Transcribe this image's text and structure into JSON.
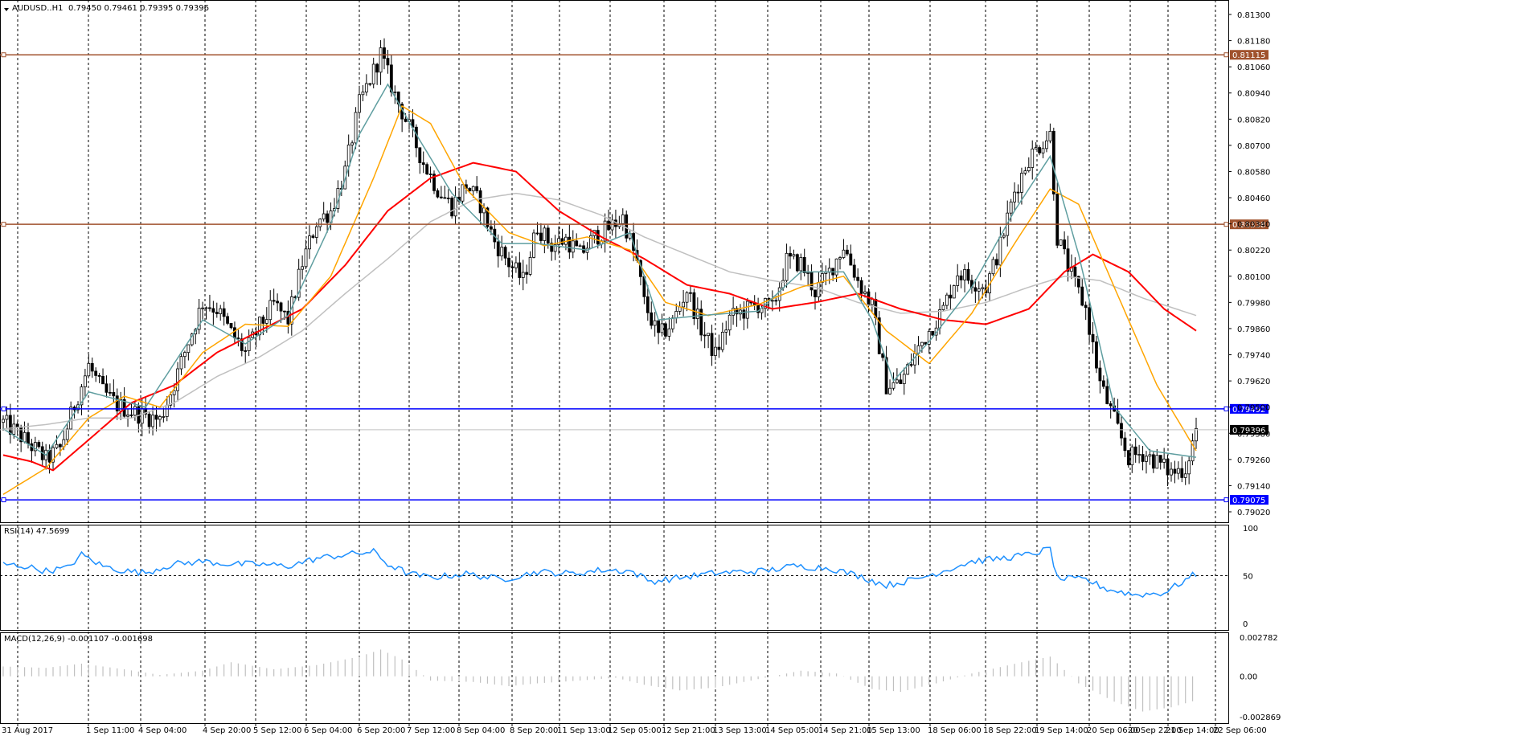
{
  "header": {
    "symbol": "AUDUSD..H1",
    "ohlc": "0.79450 0.79461 0.79395 0.79396"
  },
  "colors": {
    "background": "#ffffff",
    "candle": "#000000",
    "ma_teal": "#5f9ea0",
    "ma_orange": "#ffa500",
    "ma_red": "#ff0000",
    "ma_silver": "#c0c0c0",
    "resistance": "#a0522d",
    "support": "#0000ff",
    "rsi": "#1e90ff",
    "macd": "#c0c0c0"
  },
  "chart_data": [
    {
      "type": "candlestick",
      "symbol": "AUDUSD",
      "timeframe": "H1",
      "ylim": [
        0.7902,
        0.813
      ],
      "yticks": [
        "0.81300",
        "0.81180",
        "0.81060",
        "0.80940",
        "0.80820",
        "0.80700",
        "0.80580",
        "0.80460",
        "0.80340",
        "0.80220",
        "0.80100",
        "0.79980",
        "0.79860",
        "0.79740",
        "0.79620",
        "0.79500",
        "0.79380",
        "0.79260",
        "0.79140",
        "0.79020"
      ],
      "xticks": [
        "31 Aug 2017",
        "1 Sep 11:00",
        "4 Sep 04:00",
        "4 Sep 20:00",
        "5 Sep 12:00",
        "6 Sep 04:00",
        "6 Sep 20:00",
        "7 Sep 12:00",
        "8 Sep 04:00",
        "8 Sep 20:00",
        "11 Sep 13:00",
        "12 Sep 05:00",
        "12 Sep 21:00",
        "13 Sep 13:00",
        "14 Sep 05:00",
        "14 Sep 21:00",
        "15 Sep 13:00",
        "18 Sep 06:00",
        "18 Sep 22:00",
        "19 Sep 14:00",
        "20 Sep 06:00",
        "20 Sep 22:00",
        "21 Sep 14:00",
        "22 Sep 06:00"
      ],
      "close_path": [
        [
          0,
          0.7943
        ],
        [
          4,
          0.7938
        ],
        [
          8,
          0.7932
        ],
        [
          12,
          0.7926
        ],
        [
          16,
          0.7931
        ],
        [
          20,
          0.7951
        ],
        [
          24,
          0.7969
        ],
        [
          28,
          0.7957
        ],
        [
          32,
          0.7951
        ],
        [
          36,
          0.7948
        ],
        [
          40,
          0.7946
        ],
        [
          44,
          0.7944
        ],
        [
          48,
          0.7961
        ],
        [
          52,
          0.798
        ],
        [
          56,
          0.7998
        ],
        [
          60,
          0.7995
        ],
        [
          64,
          0.7984
        ],
        [
          68,
          0.7975
        ],
        [
          72,
          0.7987
        ],
        [
          76,
          0.7997
        ],
        [
          80,
          0.799
        ],
        [
          84,
          0.8016
        ],
        [
          88,
          0.8035
        ],
        [
          92,
          0.804
        ],
        [
          96,
          0.8058
        ],
        [
          100,
          0.8089
        ],
        [
          104,
          0.8104
        ],
        [
          106,
          0.8112
        ],
        [
          110,
          0.8093
        ],
        [
          114,
          0.8078
        ],
        [
          118,
          0.8062
        ],
        [
          122,
          0.805
        ],
        [
          126,
          0.8042
        ],
        [
          130,
          0.8052
        ],
        [
          134,
          0.8043
        ],
        [
          138,
          0.8026
        ],
        [
          142,
          0.8016
        ],
        [
          146,
          0.8008
        ],
        [
          150,
          0.8033
        ],
        [
          154,
          0.8024
        ],
        [
          158,
          0.8027
        ],
        [
          162,
          0.802
        ],
        [
          166,
          0.8028
        ],
        [
          170,
          0.8032
        ],
        [
          174,
          0.8037
        ],
        [
          178,
          0.8016
        ],
        [
          180,
          0.7998
        ],
        [
          184,
          0.7982
        ],
        [
          188,
          0.7989
        ],
        [
          192,
          0.8004
        ],
        [
          196,
          0.7986
        ],
        [
          200,
          0.7974
        ],
        [
          204,
          0.7991
        ],
        [
          208,
          0.7994
        ],
        [
          212,
          0.7997
        ],
        [
          216,
          0.7995
        ],
        [
          220,
          0.8017
        ],
        [
          224,
          0.8016
        ],
        [
          228,
          0.8003
        ],
        [
          232,
          0.8012
        ],
        [
          236,
          0.8024
        ],
        [
          240,
          0.8008
        ],
        [
          244,
          0.7996
        ],
        [
          248,
          0.796
        ],
        [
          252,
          0.7961
        ],
        [
          256,
          0.7974
        ],
        [
          260,
          0.7985
        ],
        [
          264,
          0.7995
        ],
        [
          268,
          0.8012
        ],
        [
          272,
          0.8008
        ],
        [
          276,
          0.8005
        ],
        [
          280,
          0.8024
        ],
        [
          284,
          0.8049
        ],
        [
          288,
          0.8064
        ],
        [
          292,
          0.8072
        ],
        [
          294,
          0.8075
        ],
        [
          296,
          0.8028
        ],
        [
          300,
          0.801
        ],
        [
          304,
          0.7995
        ],
        [
          308,
          0.7961
        ],
        [
          312,
          0.7944
        ],
        [
          316,
          0.7927
        ],
        [
          320,
          0.7929
        ],
        [
          324,
          0.7925
        ],
        [
          328,
          0.792
        ],
        [
          332,
          0.7922
        ],
        [
          335,
          0.794
        ]
      ],
      "n_bars": 336,
      "ma_teal": [
        [
          0,
          0.794
        ],
        [
          12,
          0.7928
        ],
        [
          24,
          0.7957
        ],
        [
          40,
          0.795
        ],
        [
          56,
          0.799
        ],
        [
          68,
          0.7979
        ],
        [
          80,
          0.7992
        ],
        [
          92,
          0.8034
        ],
        [
          100,
          0.8075
        ],
        [
          108,
          0.8098
        ],
        [
          116,
          0.8075
        ],
        [
          126,
          0.8048
        ],
        [
          140,
          0.8025
        ],
        [
          150,
          0.8025
        ],
        [
          164,
          0.8022
        ],
        [
          176,
          0.803
        ],
        [
          184,
          0.799
        ],
        [
          196,
          0.7992
        ],
        [
          212,
          0.7994
        ],
        [
          224,
          0.8012
        ],
        [
          236,
          0.8012
        ],
        [
          244,
          0.799
        ],
        [
          250,
          0.7962
        ],
        [
          260,
          0.798
        ],
        [
          272,
          0.8005
        ],
        [
          284,
          0.804
        ],
        [
          294,
          0.8065
        ],
        [
          302,
          0.802
        ],
        [
          312,
          0.795
        ],
        [
          322,
          0.793
        ],
        [
          335,
          0.7927
        ]
      ],
      "ma_orange": [
        [
          0,
          0.791
        ],
        [
          12,
          0.7922
        ],
        [
          24,
          0.7945
        ],
        [
          34,
          0.7955
        ],
        [
          44,
          0.795
        ],
        [
          56,
          0.7975
        ],
        [
          68,
          0.7988
        ],
        [
          80,
          0.7987
        ],
        [
          92,
          0.801
        ],
        [
          104,
          0.8055
        ],
        [
          112,
          0.8088
        ],
        [
          120,
          0.808
        ],
        [
          130,
          0.805
        ],
        [
          142,
          0.803
        ],
        [
          152,
          0.8024
        ],
        [
          164,
          0.8028
        ],
        [
          176,
          0.8022
        ],
        [
          186,
          0.7998
        ],
        [
          198,
          0.7992
        ],
        [
          212,
          0.7997
        ],
        [
          224,
          0.8005
        ],
        [
          236,
          0.801
        ],
        [
          248,
          0.7985
        ],
        [
          260,
          0.797
        ],
        [
          272,
          0.7993
        ],
        [
          284,
          0.8025
        ],
        [
          294,
          0.805
        ],
        [
          302,
          0.8043
        ],
        [
          312,
          0.8005
        ],
        [
          324,
          0.796
        ],
        [
          335,
          0.793
        ]
      ],
      "ma_red": [
        [
          0,
          0.7928
        ],
        [
          8,
          0.7925
        ],
        [
          14,
          0.7921
        ],
        [
          24,
          0.7935
        ],
        [
          36,
          0.7952
        ],
        [
          48,
          0.796
        ],
        [
          60,
          0.7975
        ],
        [
          72,
          0.7985
        ],
        [
          84,
          0.7995
        ],
        [
          96,
          0.8015
        ],
        [
          108,
          0.804
        ],
        [
          120,
          0.8055
        ],
        [
          132,
          0.8062
        ],
        [
          144,
          0.8058
        ],
        [
          156,
          0.804
        ],
        [
          168,
          0.8028
        ],
        [
          180,
          0.8018
        ],
        [
          192,
          0.8006
        ],
        [
          204,
          0.8002
        ],
        [
          216,
          0.7995
        ],
        [
          228,
          0.7998
        ],
        [
          240,
          0.8002
        ],
        [
          252,
          0.7995
        ],
        [
          264,
          0.799
        ],
        [
          276,
          0.7988
        ],
        [
          288,
          0.7995
        ],
        [
          298,
          0.8012
        ],
        [
          306,
          0.802
        ],
        [
          316,
          0.8012
        ],
        [
          326,
          0.7995
        ],
        [
          335,
          0.7985
        ]
      ],
      "ma_silver": [
        [
          0,
          0.794
        ],
        [
          12,
          0.7942
        ],
        [
          24,
          0.7945
        ],
        [
          36,
          0.7945
        ],
        [
          48,
          0.7952
        ],
        [
          60,
          0.7964
        ],
        [
          72,
          0.7973
        ],
        [
          84,
          0.7985
        ],
        [
          96,
          0.8002
        ],
        [
          108,
          0.8018
        ],
        [
          120,
          0.8035
        ],
        [
          132,
          0.8045
        ],
        [
          144,
          0.8048
        ],
        [
          156,
          0.8045
        ],
        [
          168,
          0.8038
        ],
        [
          180,
          0.8028
        ],
        [
          192,
          0.802
        ],
        [
          204,
          0.8012
        ],
        [
          216,
          0.8008
        ],
        [
          228,
          0.8005
        ],
        [
          240,
          0.7998
        ],
        [
          252,
          0.7993
        ],
        [
          264,
          0.7994
        ],
        [
          276,
          0.7998
        ],
        [
          288,
          0.8005
        ],
        [
          298,
          0.801
        ],
        [
          308,
          0.8008
        ],
        [
          320,
          0.8
        ],
        [
          335,
          0.7992
        ]
      ],
      "h_lines": [
        {
          "name": "resistance-high",
          "value": 0.81115,
          "label": "0.81115",
          "color": "#a0522d"
        },
        {
          "name": "resistance-mid",
          "value": 0.80338,
          "label": "0.80338",
          "color": "#a0522d"
        },
        {
          "name": "support-high",
          "value": 0.79492,
          "label": "0.79492",
          "color": "#0000ff"
        },
        {
          "name": "support-low",
          "value": 0.79075,
          "label": "0.79075",
          "color": "#0000ff"
        }
      ],
      "current_price": {
        "value": 0.79396,
        "label": "0.79396"
      }
    },
    {
      "type": "line",
      "title": "RSI(14) 47.5699",
      "ylim": [
        0,
        100
      ],
      "yticks": [
        "100",
        "50",
        "0"
      ],
      "values": [
        [
          0,
          62
        ],
        [
          6,
          60
        ],
        [
          12,
          55
        ],
        [
          18,
          58
        ],
        [
          22,
          72
        ],
        [
          28,
          60
        ],
        [
          34,
          55
        ],
        [
          40,
          53
        ],
        [
          44,
          58
        ],
        [
          48,
          62
        ],
        [
          56,
          65
        ],
        [
          64,
          62
        ],
        [
          72,
          62
        ],
        [
          80,
          60
        ],
        [
          88,
          68
        ],
        [
          96,
          72
        ],
        [
          104,
          75
        ],
        [
          108,
          62
        ],
        [
          114,
          52
        ],
        [
          120,
          48
        ],
        [
          130,
          52
        ],
        [
          140,
          46
        ],
        [
          150,
          54
        ],
        [
          160,
          52
        ],
        [
          168,
          56
        ],
        [
          176,
          55
        ],
        [
          182,
          44
        ],
        [
          190,
          48
        ],
        [
          198,
          52
        ],
        [
          206,
          54
        ],
        [
          214,
          55
        ],
        [
          222,
          60
        ],
        [
          232,
          58
        ],
        [
          240,
          50
        ],
        [
          248,
          40
        ],
        [
          256,
          46
        ],
        [
          264,
          55
        ],
        [
          272,
          65
        ],
        [
          280,
          68
        ],
        [
          288,
          72
        ],
        [
          294,
          78
        ],
        [
          296,
          47
        ],
        [
          304,
          46
        ],
        [
          310,
          36
        ],
        [
          318,
          30
        ],
        [
          326,
          32
        ],
        [
          334,
          50
        ]
      ]
    },
    {
      "type": "bar",
      "title": "MACD(12,26,9) -0.001107 -0.001698",
      "ylim": [
        -0.002869,
        0.002782
      ],
      "yticks": [
        "0.002782",
        "0.00",
        "-0.002869"
      ],
      "values": [
        [
          0,
          0.0007
        ],
        [
          12,
          0.0006
        ],
        [
          22,
          0.0009
        ],
        [
          34,
          0.0005
        ],
        [
          44,
          0.0001
        ],
        [
          56,
          0.0004
        ],
        [
          64,
          0.001
        ],
        [
          76,
          0.0005
        ],
        [
          88,
          0.0008
        ],
        [
          100,
          0.0014
        ],
        [
          106,
          0.0019
        ],
        [
          112,
          0.0012
        ],
        [
          120,
          -0.0003
        ],
        [
          132,
          -0.0004
        ],
        [
          142,
          -0.0007
        ],
        [
          150,
          -0.0005
        ],
        [
          162,
          -0.0003
        ],
        [
          172,
          -0.0001
        ],
        [
          180,
          -0.0006
        ],
        [
          190,
          -0.001
        ],
        [
          200,
          -0.0008
        ],
        [
          212,
          -0.0002
        ],
        [
          224,
          0.0004
        ],
        [
          234,
          0.0002
        ],
        [
          244,
          -0.0009
        ],
        [
          252,
          -0.0011
        ],
        [
          262,
          -0.0005
        ],
        [
          272,
          0.0002
        ],
        [
          286,
          0.001
        ],
        [
          294,
          0.0014
        ],
        [
          302,
          -0.0005
        ],
        [
          312,
          -0.0018
        ],
        [
          320,
          -0.0025
        ],
        [
          328,
          -0.0022
        ],
        [
          335,
          -0.0017
        ]
      ]
    }
  ]
}
